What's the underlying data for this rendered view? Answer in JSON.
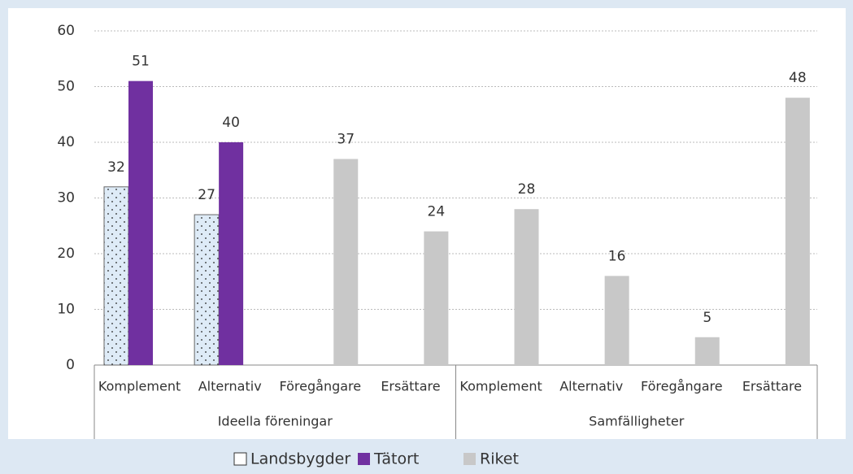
{
  "chart_data": {
    "type": "bar",
    "categories": [
      "Komplement",
      "Alternativ",
      "Föregångare",
      "Ersättare",
      "Komplement",
      "Alternativ",
      "Föregångare",
      "Ersättare"
    ],
    "groups": [
      {
        "label": "Ideella föreningar",
        "size": 4
      },
      {
        "label": "Samfälligheter",
        "size": 4
      }
    ],
    "series": [
      {
        "name": "Landsbygder",
        "color": "#deebf7",
        "pattern": "dots",
        "values": [
          32,
          27,
          null,
          null,
          null,
          null,
          null,
          null
        ]
      },
      {
        "name": "Tätort",
        "color": "#7030a0",
        "values": [
          51,
          40,
          null,
          null,
          null,
          null,
          null,
          null
        ]
      },
      {
        "name": "Riket",
        "color": "#c8c8c8",
        "values": [
          null,
          null,
          37,
          24,
          28,
          16,
          5,
          48
        ]
      }
    ],
    "ylim": [
      0,
      60
    ],
    "yticks": [
      0,
      10,
      20,
      30,
      40,
      50,
      60
    ],
    "grid": true,
    "legend": "bottom"
  }
}
